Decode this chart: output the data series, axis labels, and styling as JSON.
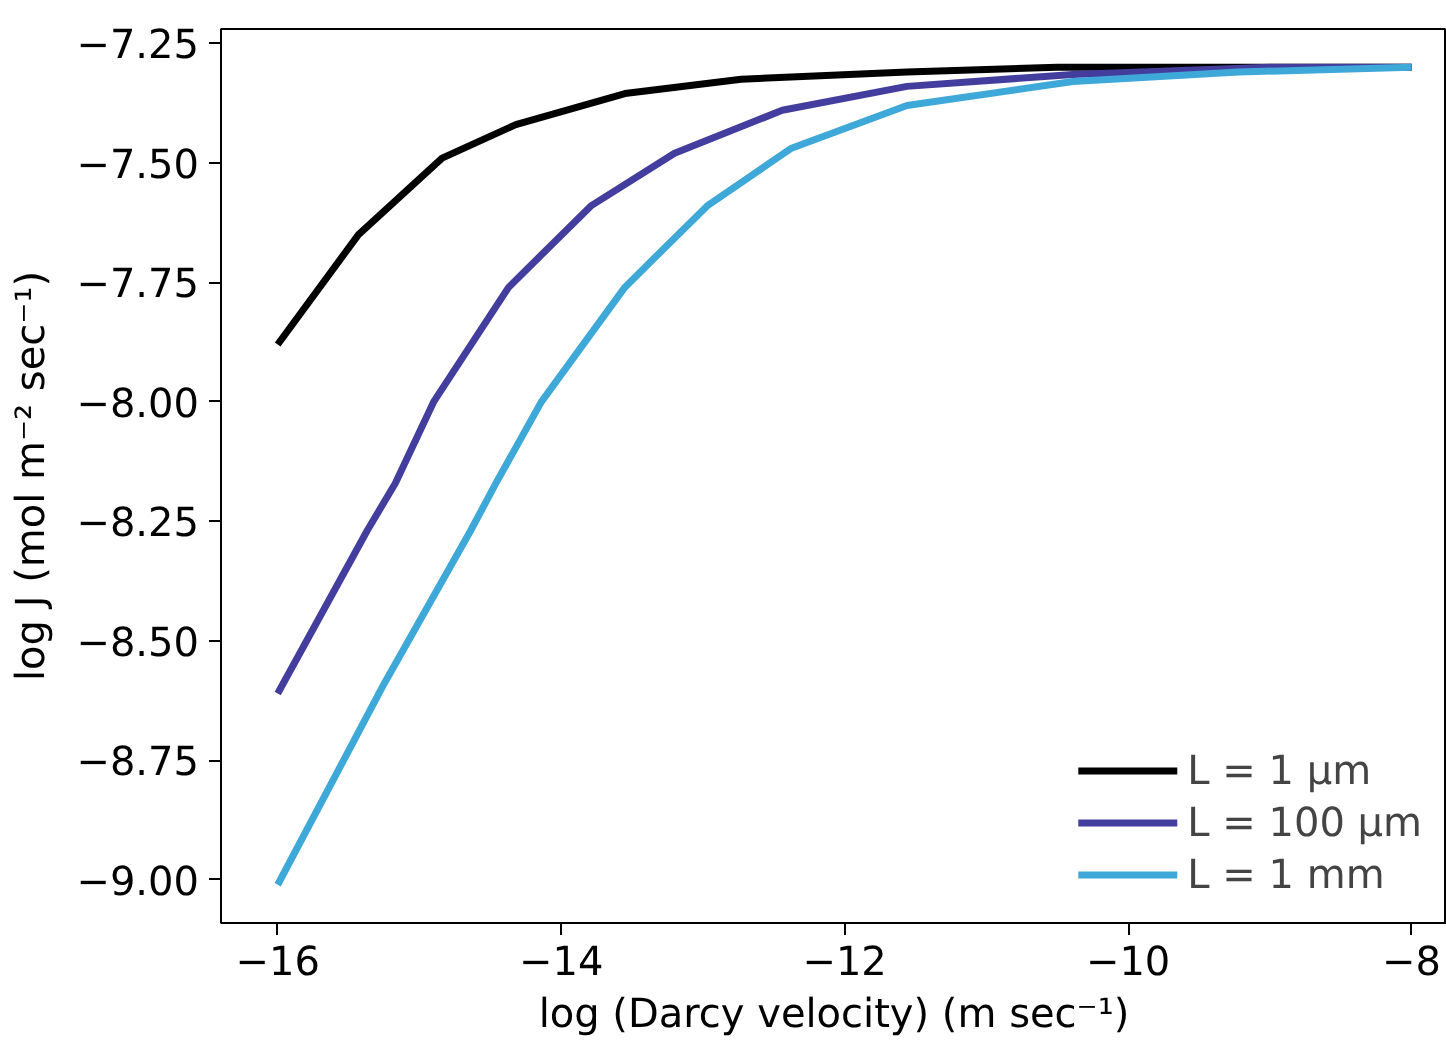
{
  "chart_data": {
    "type": "line",
    "xlabel": "log (Darcy velocity) (m sec⁻¹)",
    "ylabel": "log J (mol m⁻² sec⁻¹)",
    "xlim": [
      -16.4,
      -7.75
    ],
    "ylim": [
      -9.09,
      -7.22
    ],
    "xticks": [
      {
        "value": -16,
        "label": "−16"
      },
      {
        "value": -14,
        "label": "−14"
      },
      {
        "value": -12,
        "label": "−12"
      },
      {
        "value": -10,
        "label": "−10"
      },
      {
        "value": -8,
        "label": "−8"
      }
    ],
    "yticks": [
      {
        "value": -9.0,
        "label": "−9.00"
      },
      {
        "value": -8.75,
        "label": "−8.75"
      },
      {
        "value": -8.5,
        "label": "−8.50"
      },
      {
        "value": -8.25,
        "label": "−8.25"
      },
      {
        "value": -8.0,
        "label": "−8.00"
      },
      {
        "value": -7.75,
        "label": "−7.75"
      },
      {
        "value": -7.5,
        "label": "−7.50"
      },
      {
        "value": -7.25,
        "label": "−7.25"
      }
    ],
    "grid": false,
    "legend": "bottom right",
    "line_style": "solid",
    "series": [
      {
        "name": "L = 1 µm",
        "color": "#000000",
        "x": [
          -16,
          -15.43,
          -14.84,
          -14.32,
          -13.55,
          -12.73,
          -11.56,
          -10.5,
          -9,
          -8
        ],
        "values": [
          -7.88,
          -7.65,
          -7.49,
          -7.42,
          -7.355,
          -7.325,
          -7.31,
          -7.3,
          -7.3,
          -7.3
        ]
      },
      {
        "name": "L = 100 µm",
        "color": "#433d9e",
        "x": [
          -16,
          -15.37,
          -15.17,
          -14.9,
          -14.37,
          -13.79,
          -13.2,
          -12.44,
          -11.56,
          -10.39,
          -9,
          -8
        ],
        "values": [
          -8.61,
          -8.27,
          -8.17,
          -8.0,
          -7.76,
          -7.59,
          -7.48,
          -7.39,
          -7.34,
          -7.315,
          -7.3,
          -7.3
        ]
      },
      {
        "name": "L = 1 mm",
        "color": "#3ea8d8",
        "x": [
          -16,
          -15.25,
          -14.64,
          -14.46,
          -14.14,
          -13.55,
          -12.97,
          -12.38,
          -11.56,
          -10.39,
          -9.22,
          -8
        ],
        "values": [
          -9.01,
          -8.59,
          -8.27,
          -8.17,
          -8.0,
          -7.76,
          -7.59,
          -7.47,
          -7.38,
          -7.33,
          -7.31,
          -7.3
        ]
      }
    ]
  }
}
